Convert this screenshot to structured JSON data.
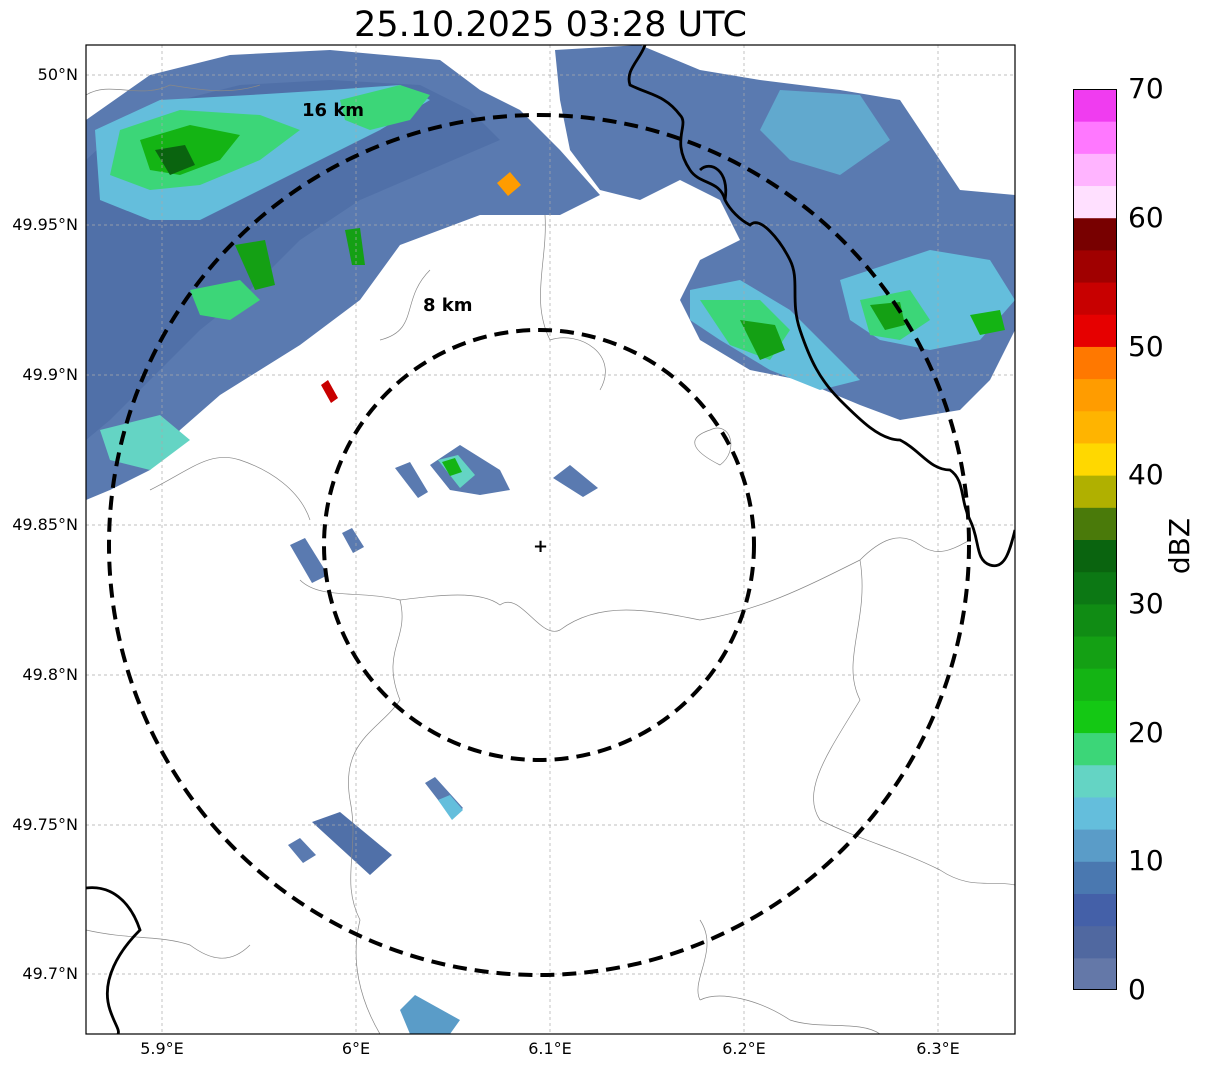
{
  "title": "25.10.2025 03:28 UTC",
  "axes": {
    "lat_ticks": [
      "50°N",
      "49.95°N",
      "49.9°N",
      "49.85°N",
      "49.8°N",
      "49.75°N",
      "49.7°N"
    ],
    "lon_ticks": [
      "5.9°E",
      "6°E",
      "6.1°E",
      "6.2°E",
      "6.3°E"
    ],
    "lon_range": [
      5.86,
      6.34
    ],
    "lat_range": [
      49.68,
      50.01
    ],
    "grid": true
  },
  "rings": [
    {
      "label": "16 km",
      "radius_km": 16
    },
    {
      "label": "8 km",
      "radius_km": 8
    }
  ],
  "radar_center": {
    "lon": 6.095,
    "lat": 49.843
  },
  "colorbar": {
    "label": "dBZ",
    "ticks": [
      "0",
      "10",
      "20",
      "30",
      "40",
      "50",
      "60",
      "70"
    ],
    "range": [
      0,
      70
    ],
    "step": 2.5,
    "colors": [
      "#6478a8",
      "#5068a0",
      "#4460a8",
      "#4a78b0",
      "#5a9cc8",
      "#64bedc",
      "#64d4c4",
      "#3cd678",
      "#14c814",
      "#14b414",
      "#14a014",
      "#108c14",
      "#0c7814",
      "#0a640f",
      "#4a7a0a",
      "#b0b000",
      "#ffd800",
      "#ffb400",
      "#ff9c00",
      "#ff7800",
      "#e60000",
      "#c80000",
      "#a00000",
      "#780000",
      "#ffe0ff",
      "#ffb4ff",
      "#ff78ff",
      "#f03cf0"
    ]
  }
}
